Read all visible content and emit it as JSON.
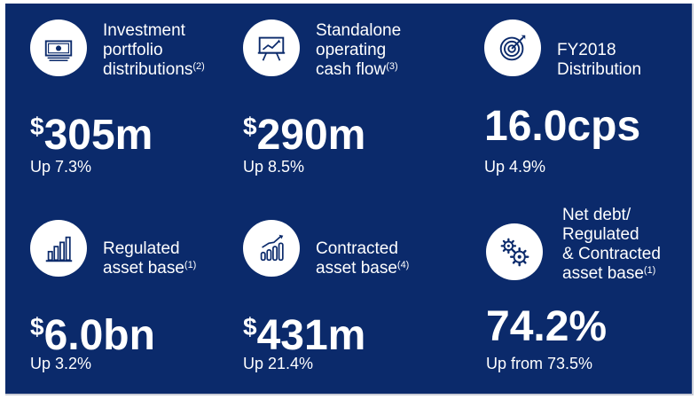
{
  "metrics": [
    {
      "label_lines": [
        "Investment",
        "portfolio",
        "distributions"
      ],
      "footnote": "(2)",
      "currency": "$",
      "value": "305m",
      "change": "Up 7.3%",
      "icon": "banknote-icon"
    },
    {
      "label_lines": [
        "Standalone",
        "operating",
        "cash flow"
      ],
      "footnote": "(3)",
      "currency": "$",
      "value": "290m",
      "change": "Up 8.5%",
      "icon": "presentation-chart-icon"
    },
    {
      "label_lines": [
        "FY2018",
        "Distribution"
      ],
      "footnote": "",
      "currency": "",
      "value": "16.0cps",
      "change": "Up 4.9%",
      "icon": "target-icon"
    },
    {
      "label_lines": [
        "Regulated",
        "asset base"
      ],
      "footnote": "(1)",
      "currency": "$",
      "value": "6.0bn",
      "change": "Up 3.2%",
      "icon": "bar-chart-icon"
    },
    {
      "label_lines": [
        "Contracted",
        "asset base"
      ],
      "footnote": "(4)",
      "currency": "$",
      "value": "431m",
      "change": "Up 21.4%",
      "icon": "growth-chart-icon"
    },
    {
      "label_lines": [
        "Net debt/",
        "Regulated",
        "& Contracted",
        "asset base"
      ],
      "footnote": "(1)",
      "currency": "",
      "value": "74.2%",
      "change": "Up from 73.5%",
      "icon": "gears-icon"
    }
  ],
  "colors": {
    "panel_background": "#0b2a6b",
    "text": "#ffffff",
    "icon_circle": "#ffffff",
    "icon_glyph": "#0b2a6b"
  }
}
